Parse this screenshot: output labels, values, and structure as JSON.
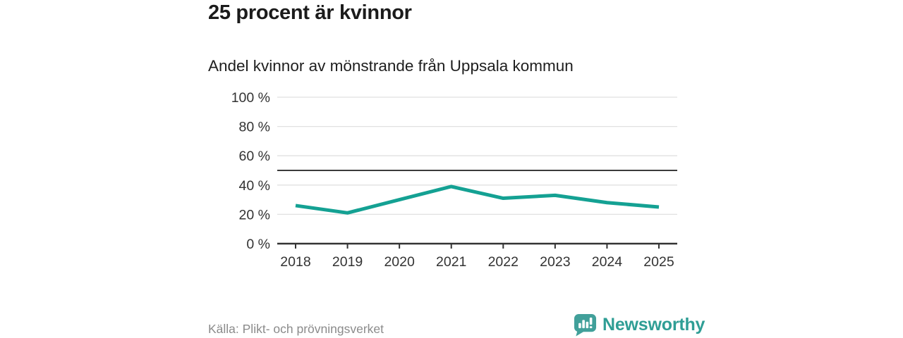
{
  "header": {
    "title": "25 procent är kvinnor",
    "subtitle": "Andel kvinnor av mönstrande från Uppsala kommun"
  },
  "chart_data": {
    "type": "line",
    "title": "25 procent är kvinnor",
    "subtitle": "Andel kvinnor av mönstrande från Uppsala kommun",
    "categories": [
      "2018",
      "2019",
      "2020",
      "2021",
      "2022",
      "2023",
      "2024",
      "2025"
    ],
    "series": [
      {
        "name": "Andel kvinnor av mönstrande",
        "values": [
          26,
          21,
          30,
          39,
          31,
          33,
          28,
          25
        ]
      }
    ],
    "ylabel": "",
    "xlabel": "",
    "ylim": [
      0,
      100
    ],
    "yticks": [
      0,
      20,
      40,
      60,
      80,
      100
    ],
    "ytick_suffix": " %",
    "reference_line": 50,
    "grid": true,
    "legend": "none",
    "colors": {
      "line": "#14a193",
      "reference_line": "#3b3b3b",
      "gridline": "#e1e1e1",
      "axis": "#333333",
      "tick_text": "#333333"
    }
  },
  "footer": {
    "source": "Källa: Plikt- och prövningsverket",
    "brand_name": "Newsworthy",
    "brand_color": "#2f9e95",
    "brand_icon": "bar-chart-exclamation-speech-bubble",
    "brand_icon_color": "#41a09a"
  }
}
